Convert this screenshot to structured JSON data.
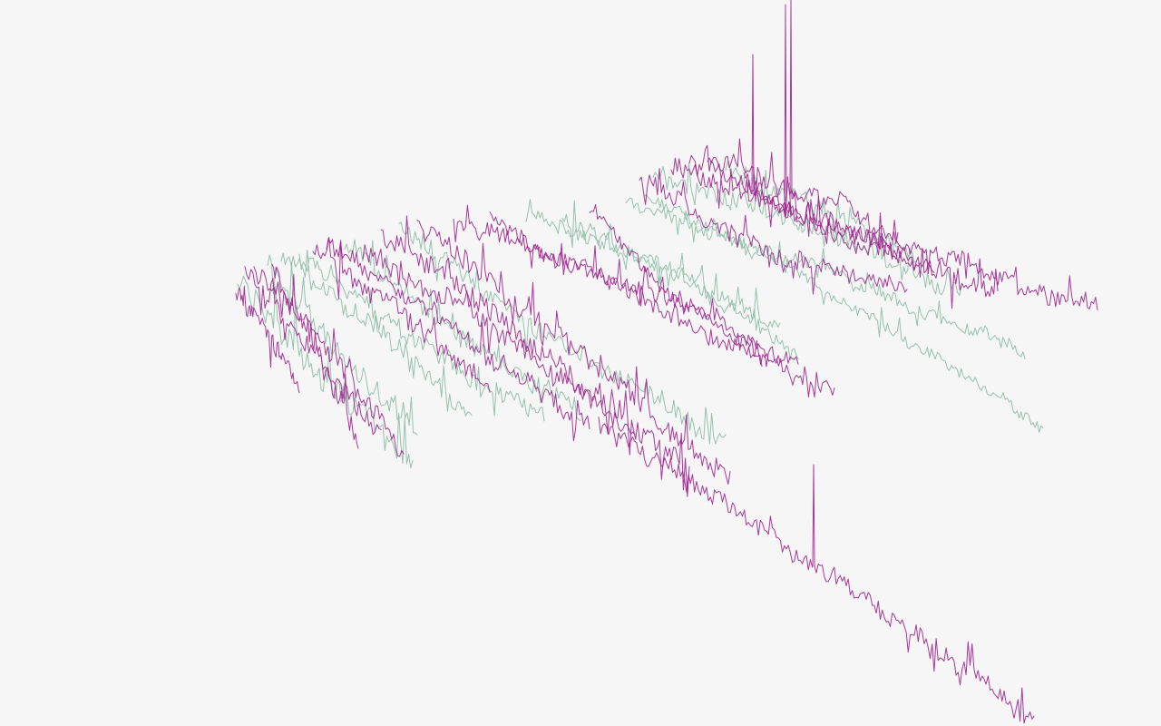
{
  "page": {
    "background_color": "#f6f6f6"
  },
  "visualization": {
    "description_visible_text": "",
    "palette": {
      "magenta": "#a0238f",
      "sage": "#8fbfa8"
    },
    "trace_count": 30,
    "interactive": false
  }
}
